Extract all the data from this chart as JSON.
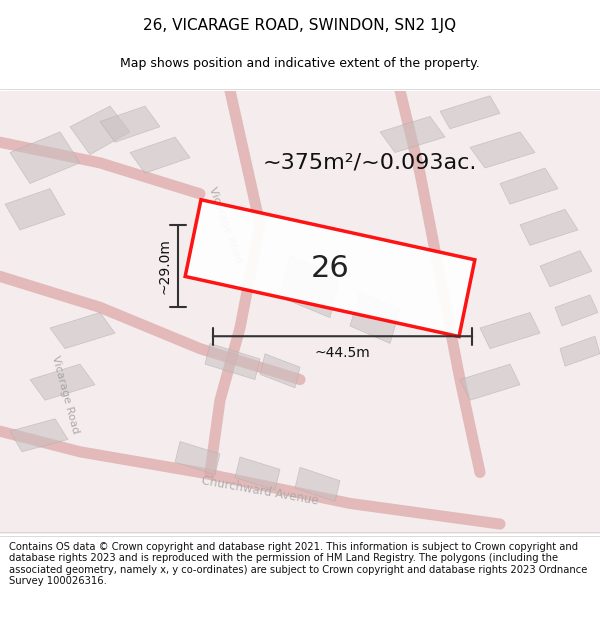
{
  "title": "26, VICARAGE ROAD, SWINDON, SN2 1JQ",
  "subtitle": "Map shows position and indicative extent of the property.",
  "footer": "Contains OS data © Crown copyright and database right 2021. This information is subject to Crown copyright and database rights 2023 and is reproduced with the permission of HM Land Registry. The polygons (including the associated geometry, namely x, y co-ordinates) are subject to Crown copyright and database rights 2023 Ordnance Survey 100026316.",
  "area_label": "~375m²/~0.093ac.",
  "property_number": "26",
  "dim_width": "~44.5m",
  "dim_height": "~29.0m",
  "bg_color": "#f5f0f0",
  "map_bg": "#f8f4f4",
  "road_color": "#e8d8d8",
  "building_color": "#d8d0d0",
  "property_fill": "#ffffff",
  "property_edge": "#ff0000",
  "dim_line_color": "#333333",
  "title_fontsize": 11,
  "subtitle_fontsize": 9,
  "footer_fontsize": 7.2,
  "area_label_fontsize": 16,
  "property_label_fontsize": 22,
  "dim_fontsize": 10
}
